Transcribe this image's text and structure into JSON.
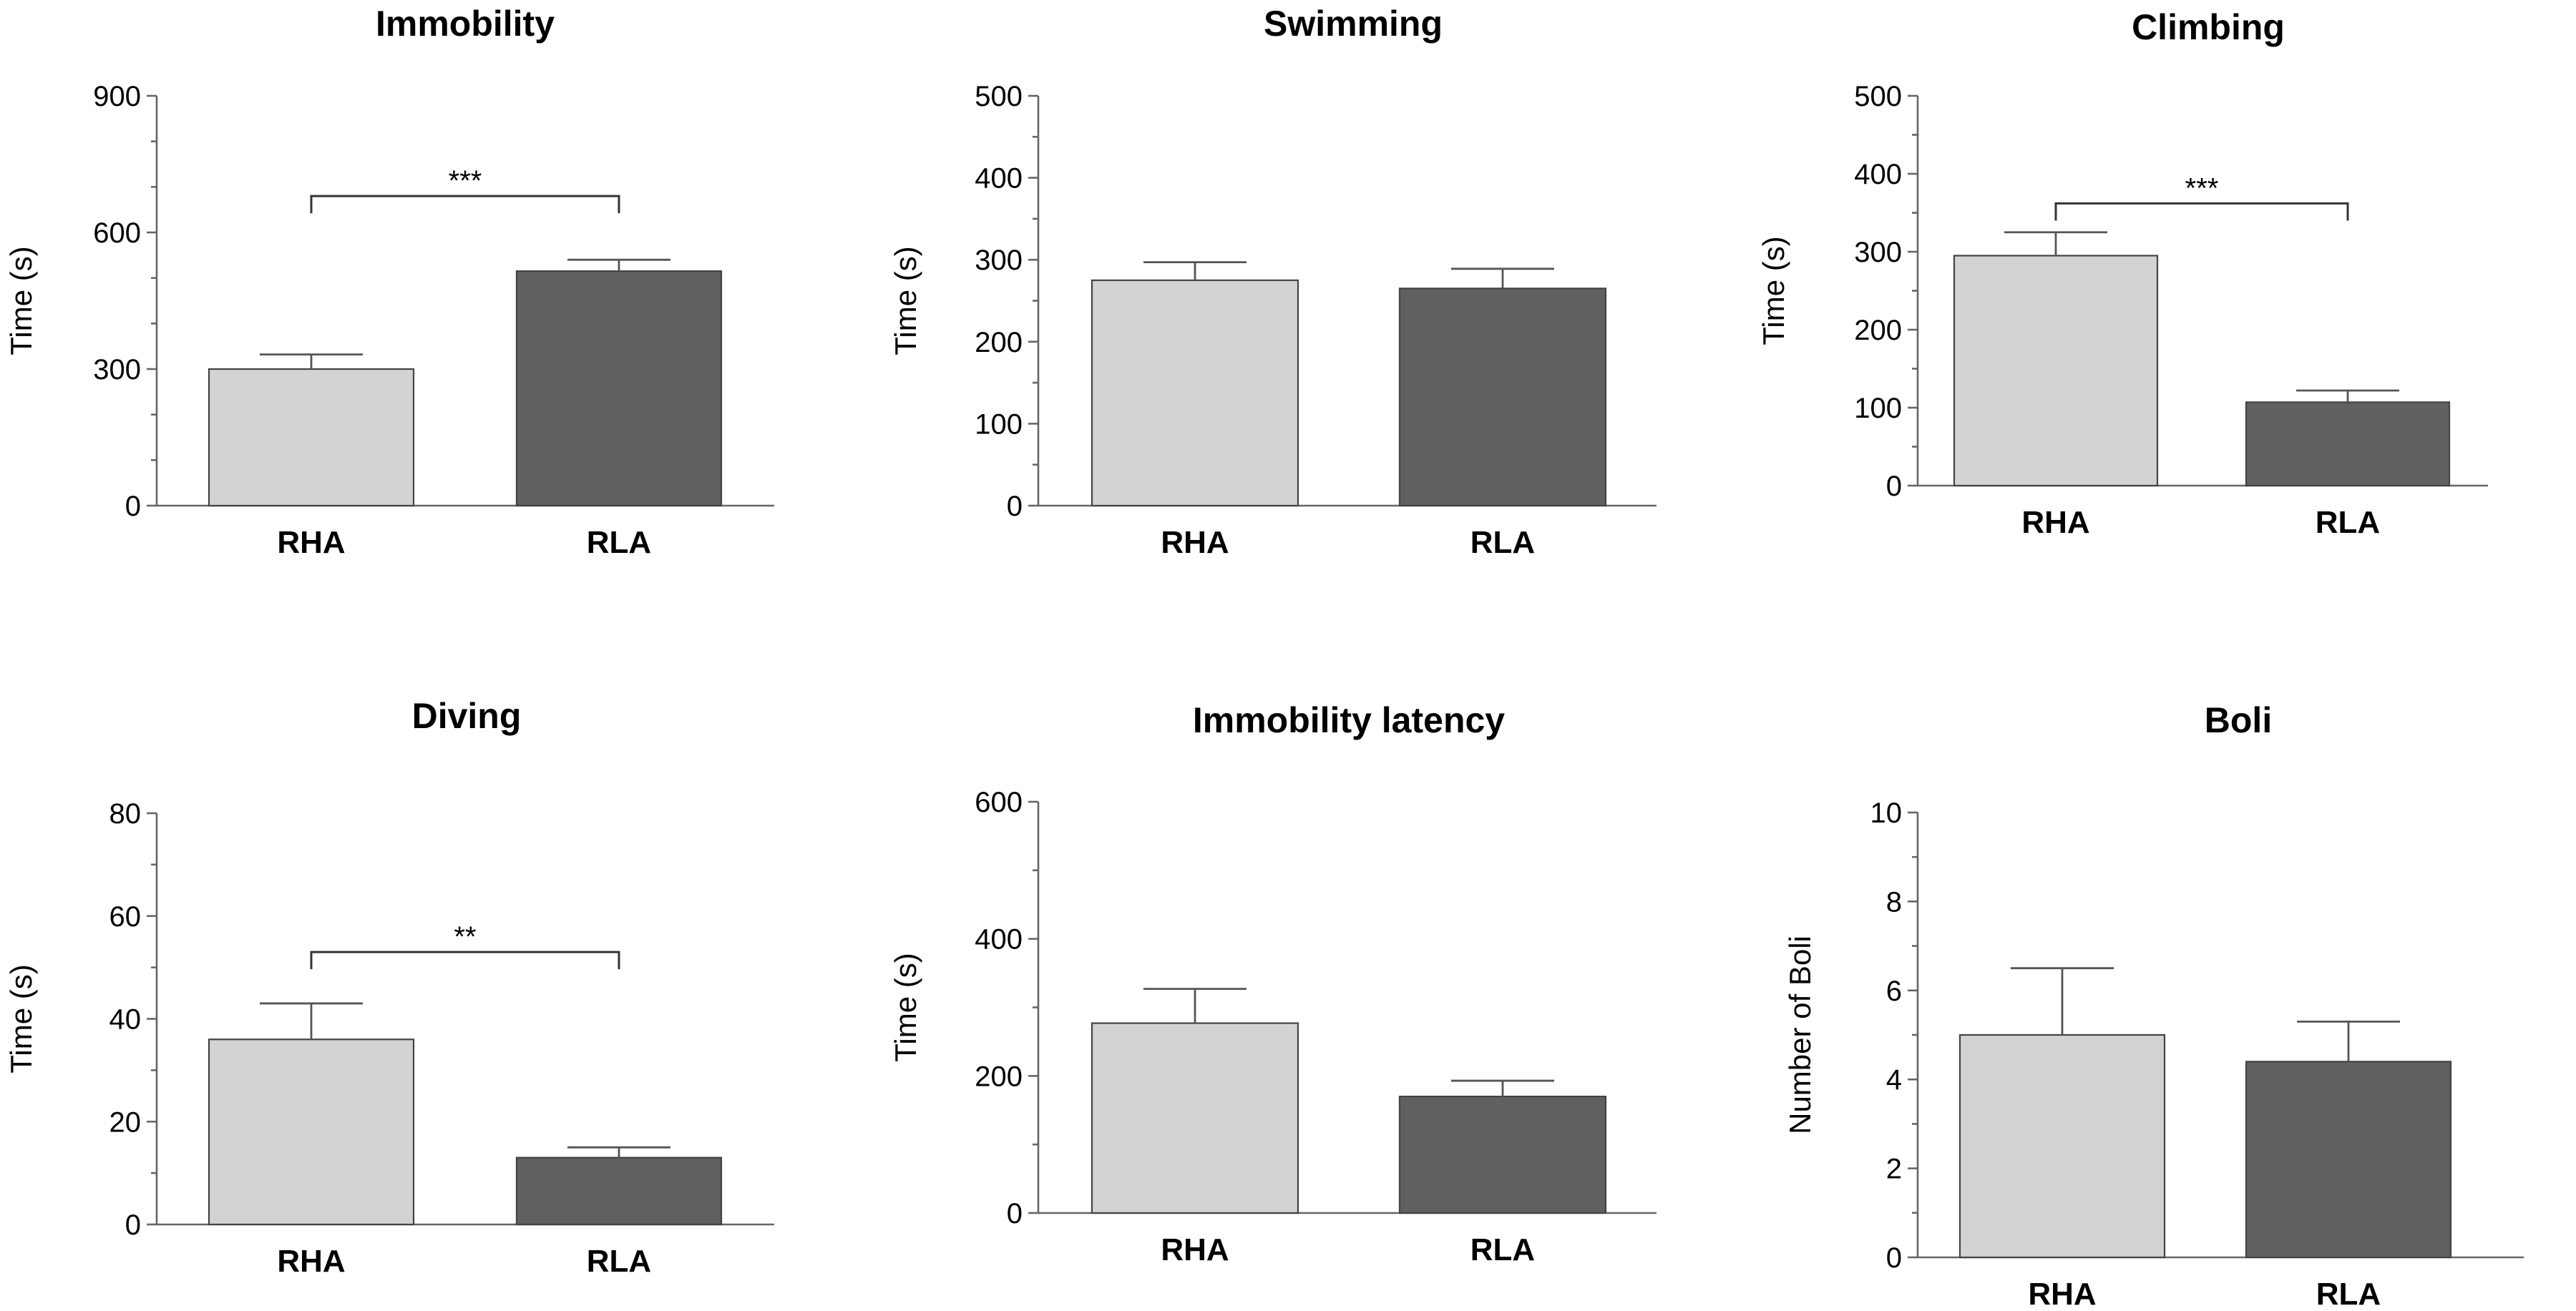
{
  "colors": {
    "rha": "#d3d3d3",
    "rla": "#606060"
  },
  "chart_data": [
    {
      "type": "bar",
      "title": "Immobility",
      "ylabel": "Time (s)",
      "xlabel": "",
      "categories": [
        "RHA",
        "RLA"
      ],
      "values": [
        300,
        515
      ],
      "errors": [
        32,
        25
      ],
      "ylim": [
        0,
        900
      ],
      "yticks": [
        0,
        300,
        600,
        900
      ],
      "yticklabels": [
        "0",
        "300",
        "600",
        "900"
      ],
      "minor_ticks": 2,
      "significance": "***",
      "bracket_y": 680
    },
    {
      "type": "bar",
      "title": "Swimming",
      "ylabel": "Time (s)",
      "xlabel": "",
      "categories": [
        "RHA",
        "RLA"
      ],
      "values": [
        275,
        265
      ],
      "errors": [
        22,
        24
      ],
      "ylim": [
        0,
        500
      ],
      "yticks": [
        0,
        100,
        200,
        300,
        400,
        500
      ],
      "yticklabels": [
        "0",
        "100",
        "200",
        "300",
        "400",
        "500"
      ],
      "minor_ticks": 1,
      "significance": "",
      "bracket_y": null
    },
    {
      "type": "bar",
      "title": "Climbing",
      "ylabel": "Time (s)",
      "xlabel": "",
      "categories": [
        "RHA",
        "RLA"
      ],
      "values": [
        295,
        107
      ],
      "errors": [
        30,
        15
      ],
      "ylim": [
        0,
        500
      ],
      "yticks": [
        0,
        100,
        200,
        300,
        400,
        500
      ],
      "yticklabels": [
        "0",
        "100",
        "200",
        "300",
        "400",
        "500"
      ],
      "minor_ticks": 1,
      "significance": "***",
      "bracket_y": 362
    },
    {
      "type": "bar",
      "title": "Diving",
      "ylabel": "Time (s)",
      "xlabel": "",
      "categories": [
        "RHA",
        "RLA"
      ],
      "values": [
        36,
        13
      ],
      "errors": [
        7,
        2
      ],
      "ylim": [
        0,
        80
      ],
      "yticks": [
        0,
        20,
        40,
        60,
        80
      ],
      "yticklabels": [
        "0",
        "20",
        "40",
        "60",
        "80"
      ],
      "minor_ticks": 1,
      "significance": "**",
      "bracket_y": 53
    },
    {
      "type": "bar",
      "title": "Immobility latency",
      "ylabel": "Time (s)",
      "xlabel": "",
      "categories": [
        "RHA",
        "RLA"
      ],
      "values": [
        277,
        170
      ],
      "errors": [
        50,
        23
      ],
      "ylim": [
        0,
        600
      ],
      "yticks": [
        0,
        200,
        400,
        600
      ],
      "yticklabels": [
        "0",
        "200",
        "400",
        "600"
      ],
      "minor_ticks": 1,
      "significance": "",
      "bracket_y": null
    },
    {
      "type": "bar",
      "title": "Boli",
      "ylabel": "Number of Boli",
      "xlabel": "",
      "categories": [
        "RHA",
        "RLA"
      ],
      "values": [
        5.0,
        4.4
      ],
      "errors": [
        1.5,
        0.9
      ],
      "ylim": [
        0,
        10
      ],
      "yticks": [
        0,
        2,
        4,
        6,
        8,
        10
      ],
      "yticklabels": [
        "0",
        "2",
        "4",
        "6",
        "8",
        "10"
      ],
      "minor_ticks": 1,
      "significance": "",
      "bracket_y": null
    }
  ]
}
